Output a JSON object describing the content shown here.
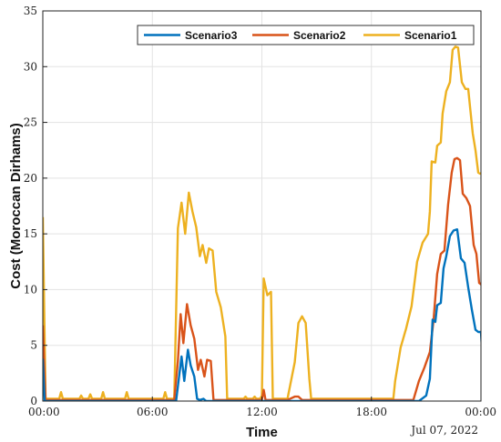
{
  "chart_data": {
    "type": "line",
    "title": "",
    "xlabel": "Time",
    "ylabel": "Cost (Moroccan Dirhams)",
    "date_label": "Jul 07, 2022",
    "xlim": [
      0,
      24
    ],
    "ylim": [
      0,
      35
    ],
    "x_ticks": [
      0,
      6,
      12,
      18,
      24
    ],
    "x_tick_labels": [
      "00:00",
      "06:00",
      "12:00",
      "18:00",
      "00:00"
    ],
    "y_ticks": [
      0,
      5,
      10,
      15,
      20,
      25,
      30,
      35
    ],
    "y_tick_labels": [
      "0",
      "5",
      "10",
      "15",
      "20",
      "25",
      "30",
      "35"
    ],
    "grid": true,
    "legend_position": "top-right",
    "legend_order": [
      "Scenario3",
      "Scenario2",
      "Scenario1"
    ],
    "series": [
      {
        "name": "Scenario1",
        "color": "#EDB120",
        "points": [
          [
            0,
            16.5
          ],
          [
            0.15,
            0.2
          ],
          [
            0.9,
            0.2
          ],
          [
            1,
            0.8
          ],
          [
            1.1,
            0.2
          ],
          [
            2,
            0.2
          ],
          [
            2.1,
            0.5
          ],
          [
            2.2,
            0.2
          ],
          [
            2.5,
            0.2
          ],
          [
            2.6,
            0.6
          ],
          [
            2.7,
            0.2
          ],
          [
            3.2,
            0.2
          ],
          [
            3.3,
            0.8
          ],
          [
            3.4,
            0.2
          ],
          [
            4.5,
            0.2
          ],
          [
            4.6,
            0.8
          ],
          [
            4.7,
            0.2
          ],
          [
            6.6,
            0.2
          ],
          [
            6.7,
            0.8
          ],
          [
            6.8,
            0.2
          ],
          [
            7.2,
            0.2
          ],
          [
            7.4,
            15.5
          ],
          [
            7.6,
            17.8
          ],
          [
            7.8,
            15.0
          ],
          [
            8.0,
            18.7
          ],
          [
            8.2,
            17.0
          ],
          [
            8.4,
            15.6
          ],
          [
            8.6,
            13.0
          ],
          [
            8.75,
            14.0
          ],
          [
            8.95,
            12.4
          ],
          [
            9.1,
            13.7
          ],
          [
            9.3,
            13.5
          ],
          [
            9.5,
            9.8
          ],
          [
            9.75,
            8.4
          ],
          [
            10.0,
            5.8
          ],
          [
            10.1,
            0.2
          ],
          [
            11.0,
            0.2
          ],
          [
            11.1,
            0.4
          ],
          [
            11.2,
            0.2
          ],
          [
            11.5,
            0.2
          ],
          [
            11.6,
            0.4
          ],
          [
            11.7,
            0.2
          ],
          [
            11.9,
            0.2
          ],
          [
            12.0,
            0.5
          ],
          [
            12.1,
            11.0
          ],
          [
            12.3,
            9.5
          ],
          [
            12.5,
            9.8
          ],
          [
            12.6,
            0.2
          ],
          [
            13.4,
            0.2
          ],
          [
            13.8,
            3.5
          ],
          [
            14.0,
            7.0
          ],
          [
            14.2,
            7.6
          ],
          [
            14.4,
            7.0
          ],
          [
            14.6,
            2.0
          ],
          [
            14.7,
            0.2
          ],
          [
            19.2,
            0.2
          ],
          [
            19.3,
            1.8
          ],
          [
            19.6,
            4.8
          ],
          [
            19.9,
            6.5
          ],
          [
            20.2,
            8.5
          ],
          [
            20.5,
            12.5
          ],
          [
            20.8,
            14.2
          ],
          [
            21.1,
            15.0
          ],
          [
            21.2,
            17.0
          ],
          [
            21.3,
            21.5
          ],
          [
            21.5,
            21.4
          ],
          [
            21.6,
            22.9
          ],
          [
            21.8,
            23.2
          ],
          [
            21.9,
            25.8
          ],
          [
            22.1,
            27.8
          ],
          [
            22.3,
            28.6
          ],
          [
            22.45,
            31.5
          ],
          [
            22.6,
            31.8
          ],
          [
            22.75,
            31.7
          ],
          [
            22.95,
            28.6
          ],
          [
            23.15,
            28.0
          ],
          [
            23.3,
            28.0
          ],
          [
            23.55,
            24.0
          ],
          [
            23.7,
            22.5
          ],
          [
            23.85,
            20.5
          ],
          [
            23.95,
            20.4
          ],
          [
            24.05,
            20.5
          ],
          [
            24.2,
            15.0
          ],
          [
            24.35,
            14.5
          ],
          [
            24.5,
            15.0
          ]
        ]
      },
      {
        "name": "Scenario2",
        "color": "#D95319",
        "points": [
          [
            0,
            6.8
          ],
          [
            0.15,
            0.1
          ],
          [
            7.2,
            0.1
          ],
          [
            7.4,
            3.6
          ],
          [
            7.55,
            7.8
          ],
          [
            7.7,
            5.2
          ],
          [
            7.9,
            8.7
          ],
          [
            8.1,
            6.8
          ],
          [
            8.3,
            5.6
          ],
          [
            8.5,
            2.8
          ],
          [
            8.65,
            3.7
          ],
          [
            8.85,
            2.2
          ],
          [
            9.0,
            3.7
          ],
          [
            9.2,
            3.6
          ],
          [
            9.35,
            0.1
          ],
          [
            12.0,
            0.1
          ],
          [
            12.1,
            1.0
          ],
          [
            12.2,
            0.1
          ],
          [
            13.4,
            0.1
          ],
          [
            13.8,
            0.4
          ],
          [
            14.0,
            0.4
          ],
          [
            14.2,
            0.1
          ],
          [
            20.3,
            0.1
          ],
          [
            20.6,
            1.8
          ],
          [
            20.9,
            3.0
          ],
          [
            21.2,
            4.4
          ],
          [
            21.4,
            7.2
          ],
          [
            21.6,
            11.4
          ],
          [
            21.8,
            13.2
          ],
          [
            22.0,
            13.5
          ],
          [
            22.2,
            17.6
          ],
          [
            22.4,
            20.5
          ],
          [
            22.55,
            21.7
          ],
          [
            22.7,
            21.8
          ],
          [
            22.85,
            21.6
          ],
          [
            23.0,
            18.6
          ],
          [
            23.2,
            18.2
          ],
          [
            23.4,
            17.5
          ],
          [
            23.6,
            14.0
          ],
          [
            23.75,
            13.2
          ],
          [
            23.9,
            10.6
          ],
          [
            24.05,
            10.4
          ],
          [
            24.15,
            10.6
          ],
          [
            24.3,
            5.0
          ],
          [
            24.4,
            4.5
          ],
          [
            24.5,
            4.9
          ]
        ]
      },
      {
        "name": "Scenario3",
        "color": "#0072BD",
        "points": [
          [
            0,
            3.8
          ],
          [
            0.1,
            0.0
          ],
          [
            7.3,
            0.0
          ],
          [
            7.45,
            2.0
          ],
          [
            7.6,
            4.0
          ],
          [
            7.75,
            1.8
          ],
          [
            7.95,
            4.6
          ],
          [
            8.1,
            3.2
          ],
          [
            8.3,
            2.2
          ],
          [
            8.45,
            0.2
          ],
          [
            8.6,
            0.1
          ],
          [
            8.8,
            0.2
          ],
          [
            8.95,
            0.0
          ],
          [
            20.6,
            0.0
          ],
          [
            21.0,
            0.5
          ],
          [
            21.2,
            2.0
          ],
          [
            21.35,
            7.3
          ],
          [
            21.5,
            7.1
          ],
          [
            21.6,
            8.6
          ],
          [
            21.8,
            8.8
          ],
          [
            21.95,
            11.9
          ],
          [
            22.1,
            13.0
          ],
          [
            22.3,
            14.8
          ],
          [
            22.5,
            15.3
          ],
          [
            22.7,
            15.4
          ],
          [
            22.9,
            12.8
          ],
          [
            23.1,
            12.4
          ],
          [
            23.3,
            10.2
          ],
          [
            23.5,
            8.2
          ],
          [
            23.7,
            6.4
          ],
          [
            23.85,
            6.2
          ],
          [
            24.0,
            6.2
          ],
          [
            24.15,
            2.0
          ],
          [
            24.3,
            1.6
          ],
          [
            24.5,
            2.0
          ]
        ]
      }
    ]
  }
}
